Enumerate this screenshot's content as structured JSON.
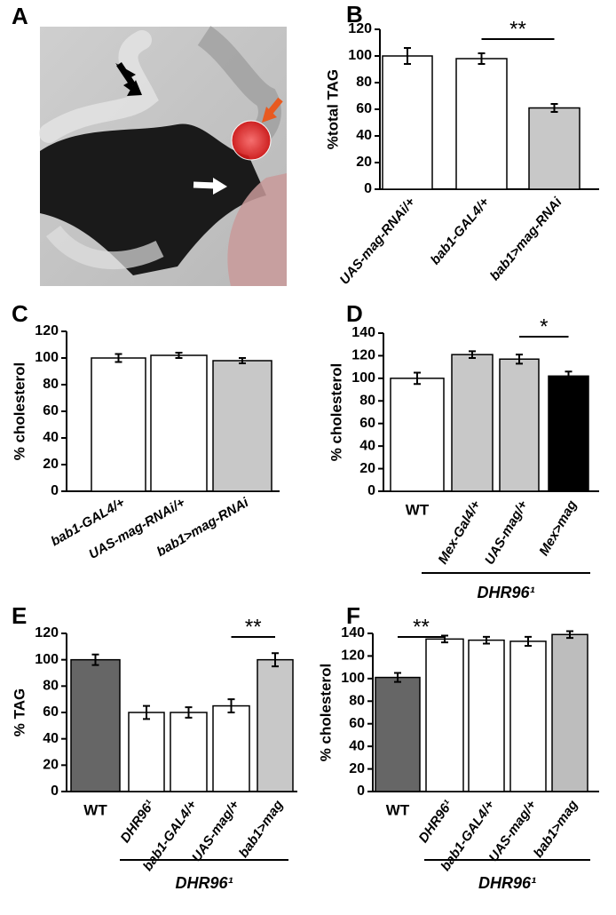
{
  "image_panel": {
    "label": "A"
  },
  "chart_data": [
    {
      "type": "bar",
      "label": "B",
      "ylabel": "%total TAG",
      "categories": [
        "UAS-mag-RNAi/+",
        "bab1-GAL4/+",
        "bab1>mag-RNAi"
      ],
      "values": [
        100,
        98,
        61
      ],
      "errors": [
        6,
        4,
        3
      ],
      "colors": [
        "#ffffff",
        "#ffffff",
        "#c8c8c8"
      ],
      "ylim": [
        0,
        120
      ],
      "yticks": [
        0,
        20,
        40,
        60,
        80,
        100,
        120
      ],
      "significance": "**"
    },
    {
      "type": "bar",
      "label": "C",
      "ylabel": "% cholesterol",
      "categories": [
        "bab1-GAL4/+",
        "UAS-mag-RNAi/+",
        "bab1>mag-RNAi"
      ],
      "values": [
        100,
        102,
        98
      ],
      "errors": [
        3,
        2,
        2
      ],
      "colors": [
        "#ffffff",
        "#ffffff",
        "#c8c8c8"
      ],
      "ylim": [
        0,
        120
      ],
      "yticks": [
        0,
        20,
        40,
        60,
        80,
        100,
        120
      ]
    },
    {
      "type": "bar",
      "label": "D",
      "ylabel": "% cholesterol",
      "categories": [
        "WT",
        "Mex-Gal4/+",
        "UAS-mag/+",
        "Mex>mag"
      ],
      "values": [
        100,
        121,
        117,
        102
      ],
      "errors": [
        5,
        3,
        4,
        4
      ],
      "colors": [
        "#ffffff",
        "#c8c8c8",
        "#c8c8c8",
        "#000000"
      ],
      "ylim": [
        0,
        140
      ],
      "yticks": [
        0,
        20,
        40,
        60,
        80,
        100,
        120,
        140
      ],
      "significance": "*",
      "group_label": "DHR96¹"
    },
    {
      "type": "bar",
      "label": "E",
      "ylabel": "% TAG",
      "categories": [
        "WT",
        "DHR96¹",
        "bab1-GAL4/+",
        "UAS-mag/+",
        "bab1>mag"
      ],
      "values": [
        100,
        60,
        60,
        65,
        100
      ],
      "errors": [
        4,
        5,
        4,
        5,
        5
      ],
      "colors": [
        "#666666",
        "#ffffff",
        "#ffffff",
        "#ffffff",
        "#c8c8c8"
      ],
      "ylim": [
        0,
        120
      ],
      "yticks": [
        0,
        20,
        40,
        60,
        80,
        100,
        120
      ],
      "significance": "**",
      "group_label": "DHR96¹"
    },
    {
      "type": "bar",
      "label": "F",
      "ylabel": "% cholesterol",
      "categories": [
        "WT",
        "DHR96¹",
        "bab1-GAL4/+",
        "UAS-mag/+",
        "bab1>mag"
      ],
      "values": [
        101,
        135,
        134,
        133,
        139
      ],
      "errors": [
        4,
        3,
        3,
        4,
        3
      ],
      "colors": [
        "#666666",
        "#ffffff",
        "#ffffff",
        "#ffffff",
        "#bdbdbd"
      ],
      "ylim": [
        0,
        140
      ],
      "yticks": [
        0,
        20,
        40,
        60,
        80,
        100,
        120,
        140
      ],
      "significance": "**",
      "group_label": "DHR96¹"
    }
  ]
}
